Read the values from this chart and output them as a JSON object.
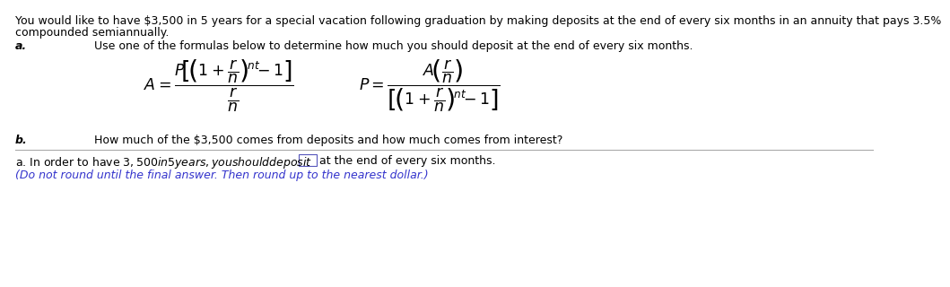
{
  "intro_text_line1": "You would like to have $3,500 in 5 years for a special vacation following graduation by making deposits at the end of every six months in an annuity that pays 3.5%",
  "intro_text_line2": "compounded semiannually.",
  "part_a_label": "a.",
  "part_a_text": "Use one of the formulas below to determine how much you should deposit at the end of every six months.",
  "part_b_label": "b.",
  "part_b_text": "How much of the $3,500 comes from deposits and how much comes from interest?",
  "answer_text_pre": "a. In order to have $3,500 in 5 years, you should deposit $",
  "answer_text_post": "at the end of every six months.",
  "answer_note": "(Do not round until the final answer. Then round up to the nearest dollar.)",
  "background_color": "#ffffff",
  "text_color": "#000000",
  "blue_text_color": "#3333cc",
  "font_size_main": 9.0,
  "formula_fontsize": 12.5
}
